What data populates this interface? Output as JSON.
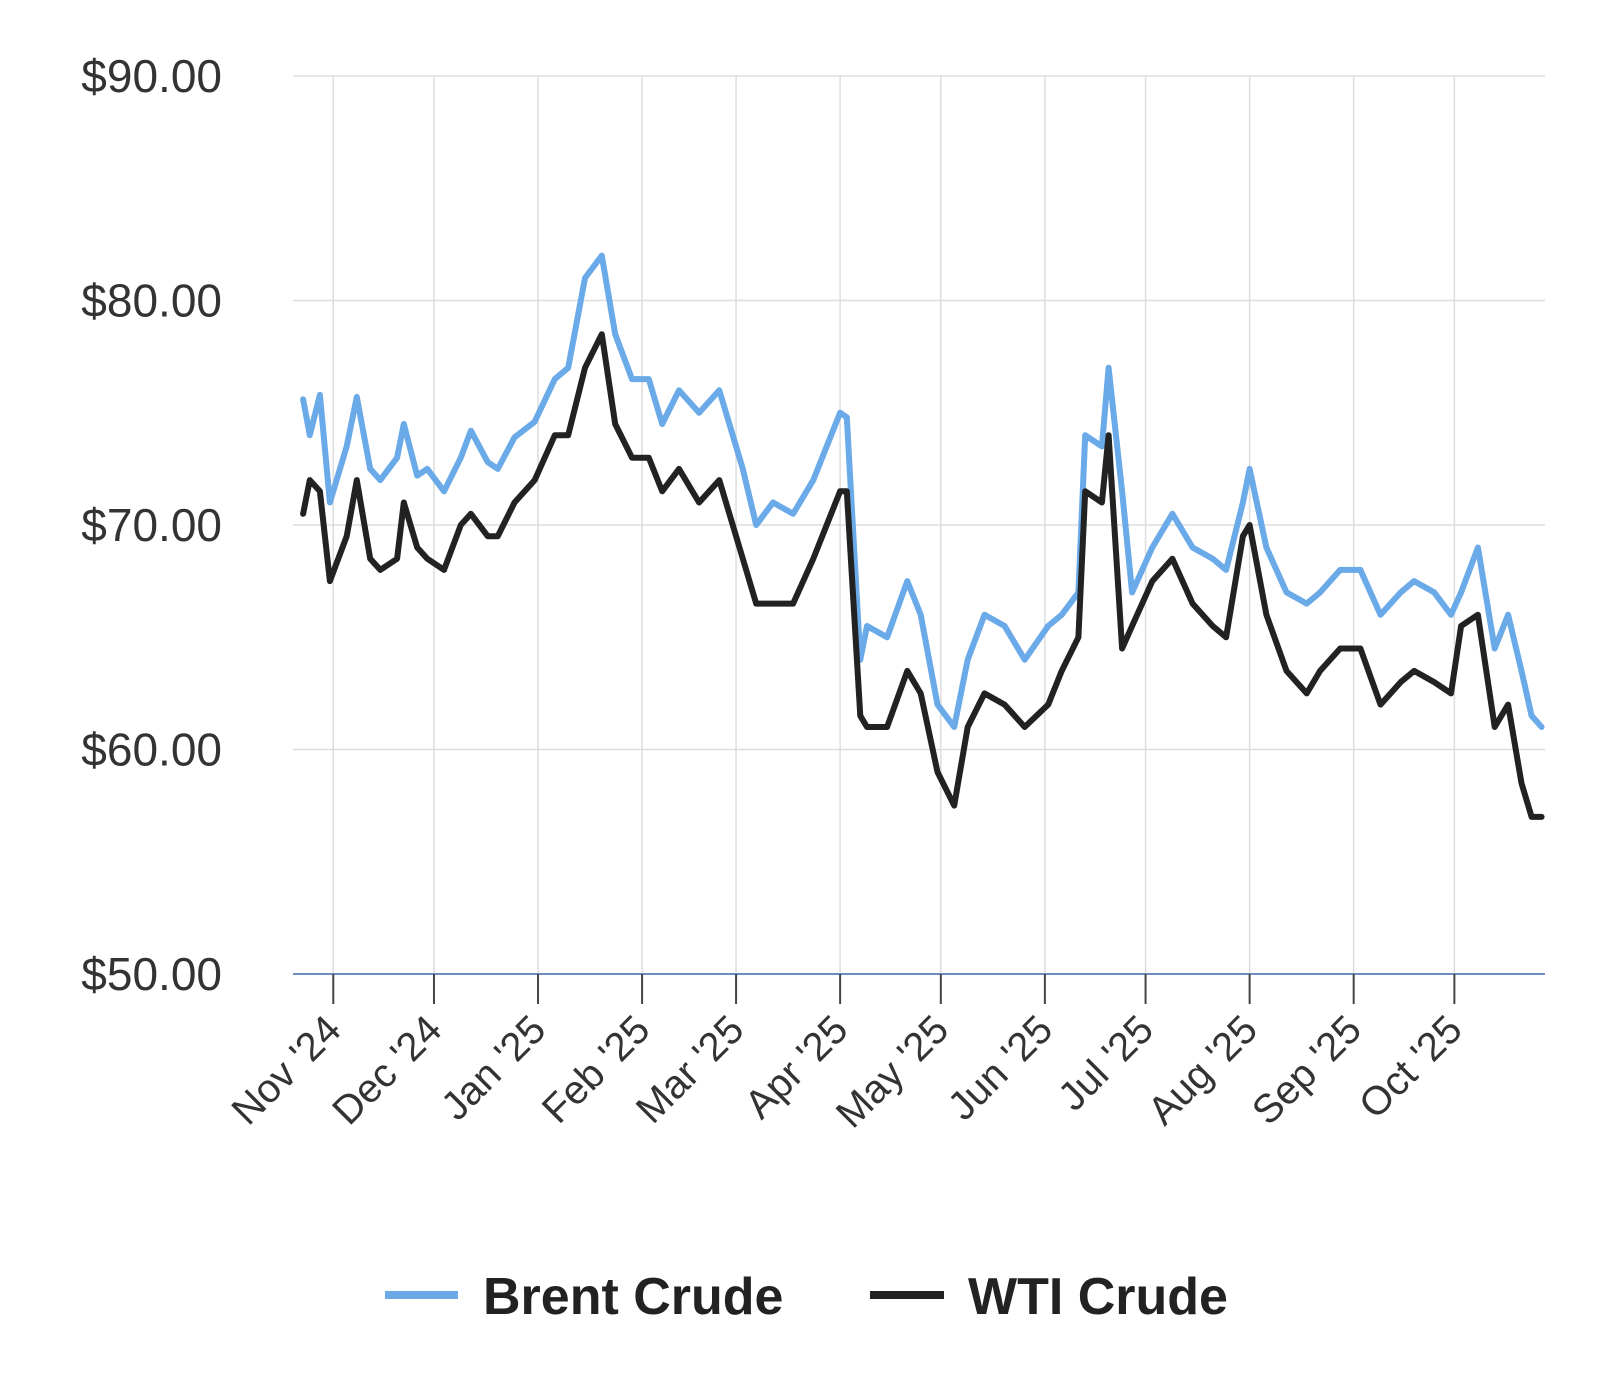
{
  "chart_data": {
    "type": "line",
    "title": "",
    "xlabel": "",
    "ylabel": "",
    "ylim": [
      50,
      90
    ],
    "yticks": [
      90,
      80,
      70,
      60,
      50
    ],
    "ytick_labels": [
      "$90.00",
      "$80.00",
      "$70.00",
      "$60.00",
      "$50.00"
    ],
    "xrange": [
      "2024-10-20",
      "2025-10-28"
    ],
    "xticks": [
      "2024-11-01",
      "2024-12-01",
      "2025-01-01",
      "2025-02-01",
      "2025-03-01",
      "2025-04-01",
      "2025-05-01",
      "2025-06-01",
      "2025-07-01",
      "2025-08-01",
      "2025-09-01",
      "2025-10-01"
    ],
    "xtick_labels": [
      "Nov '24",
      "Dec '24",
      "Jan '25",
      "Feb '25",
      "Mar '25",
      "Apr '25",
      "May '25",
      "Jun '25",
      "Jul '25",
      "Aug '25",
      "Sep '25",
      "Oct '25"
    ],
    "grid": true,
    "legend_position": "bottom",
    "x": [
      "2024-10-23",
      "2024-10-25",
      "2024-10-28",
      "2024-10-31",
      "2024-11-05",
      "2024-11-08",
      "2024-11-12",
      "2024-11-15",
      "2024-11-20",
      "2024-11-22",
      "2024-11-26",
      "2024-11-29",
      "2024-12-04",
      "2024-12-09",
      "2024-12-12",
      "2024-12-17",
      "2024-12-20",
      "2024-12-25",
      "2024-12-31",
      "2025-01-06",
      "2025-01-10",
      "2025-01-15",
      "2025-01-20",
      "2025-01-24",
      "2025-01-29",
      "2025-02-03",
      "2025-02-07",
      "2025-02-12",
      "2025-02-18",
      "2025-02-24",
      "2025-03-03",
      "2025-03-07",
      "2025-03-12",
      "2025-03-18",
      "2025-03-24",
      "2025-03-28",
      "2025-04-01",
      "2025-04-03",
      "2025-04-07",
      "2025-04-09",
      "2025-04-15",
      "2025-04-21",
      "2025-04-25",
      "2025-04-30",
      "2025-05-05",
      "2025-05-09",
      "2025-05-14",
      "2025-05-20",
      "2025-05-26",
      "2025-06-02",
      "2025-06-06",
      "2025-06-11",
      "2025-06-13",
      "2025-06-18",
      "2025-06-20",
      "2025-06-24",
      "2025-06-27",
      "2025-07-03",
      "2025-07-09",
      "2025-07-15",
      "2025-07-21",
      "2025-07-25",
      "2025-07-30",
      "2025-08-01",
      "2025-08-06",
      "2025-08-12",
      "2025-08-18",
      "2025-08-22",
      "2025-08-28",
      "2025-09-03",
      "2025-09-09",
      "2025-09-15",
      "2025-09-19",
      "2025-09-25",
      "2025-09-30",
      "2025-10-03",
      "2025-10-08",
      "2025-10-13",
      "2025-10-17",
      "2025-10-21",
      "2025-10-24",
      "2025-10-27"
    ],
    "series": [
      {
        "name": "Brent Crude",
        "color": "#6aaae8",
        "values": [
          75.6,
          74.0,
          75.8,
          71.0,
          73.5,
          75.7,
          72.5,
          72.0,
          73.0,
          74.5,
          72.2,
          72.5,
          71.5,
          73.0,
          74.2,
          72.8,
          72.5,
          73.9,
          74.6,
          76.5,
          77.0,
          81.0,
          82.0,
          78.5,
          76.5,
          76.5,
          74.5,
          76.0,
          75.0,
          76.0,
          72.5,
          70.0,
          71.0,
          70.5,
          72.0,
          73.5,
          75.0,
          74.8,
          64.0,
          65.5,
          65.0,
          67.5,
          66.0,
          62.0,
          61.0,
          64.0,
          66.0,
          65.5,
          64.0,
          65.5,
          66.0,
          67.0,
          74.0,
          73.5,
          77.0,
          71.5,
          67.0,
          69.0,
          70.5,
          69.0,
          68.5,
          68.0,
          71.0,
          72.5,
          69.0,
          67.0,
          66.5,
          67.0,
          68.0,
          68.0,
          66.0,
          67.0,
          67.5,
          67.0,
          66.0,
          67.0,
          69.0,
          64.5,
          66.0,
          63.5,
          61.5,
          61.0
        ]
      },
      {
        "name": "WTI Crude",
        "color": "#222222",
        "values": [
          70.5,
          72.0,
          71.5,
          67.5,
          69.5,
          72.0,
          68.5,
          68.0,
          68.5,
          71.0,
          69.0,
          68.5,
          68.0,
          70.0,
          70.5,
          69.5,
          69.5,
          71.0,
          72.0,
          74.0,
          74.0,
          77.0,
          78.5,
          74.5,
          73.0,
          73.0,
          71.5,
          72.5,
          71.0,
          72.0,
          68.5,
          66.5,
          66.5,
          66.5,
          68.5,
          70.0,
          71.5,
          71.5,
          61.5,
          61.0,
          61.0,
          63.5,
          62.5,
          59.0,
          57.5,
          61.0,
          62.5,
          62.0,
          61.0,
          62.0,
          63.5,
          65.0,
          71.5,
          71.0,
          74.0,
          64.5,
          65.5,
          67.5,
          68.5,
          66.5,
          65.5,
          65.0,
          69.5,
          70.0,
          66.0,
          63.5,
          62.5,
          63.5,
          64.5,
          64.5,
          62.0,
          63.0,
          63.5,
          63.0,
          62.5,
          65.5,
          66.0,
          61.0,
          62.0,
          58.5,
          57.0,
          57.0
        ]
      }
    ]
  },
  "legend": {
    "items": [
      {
        "label": "Brent Crude",
        "color": "#6aaae8"
      },
      {
        "label": "WTI Crude",
        "color": "#222222"
      }
    ]
  }
}
